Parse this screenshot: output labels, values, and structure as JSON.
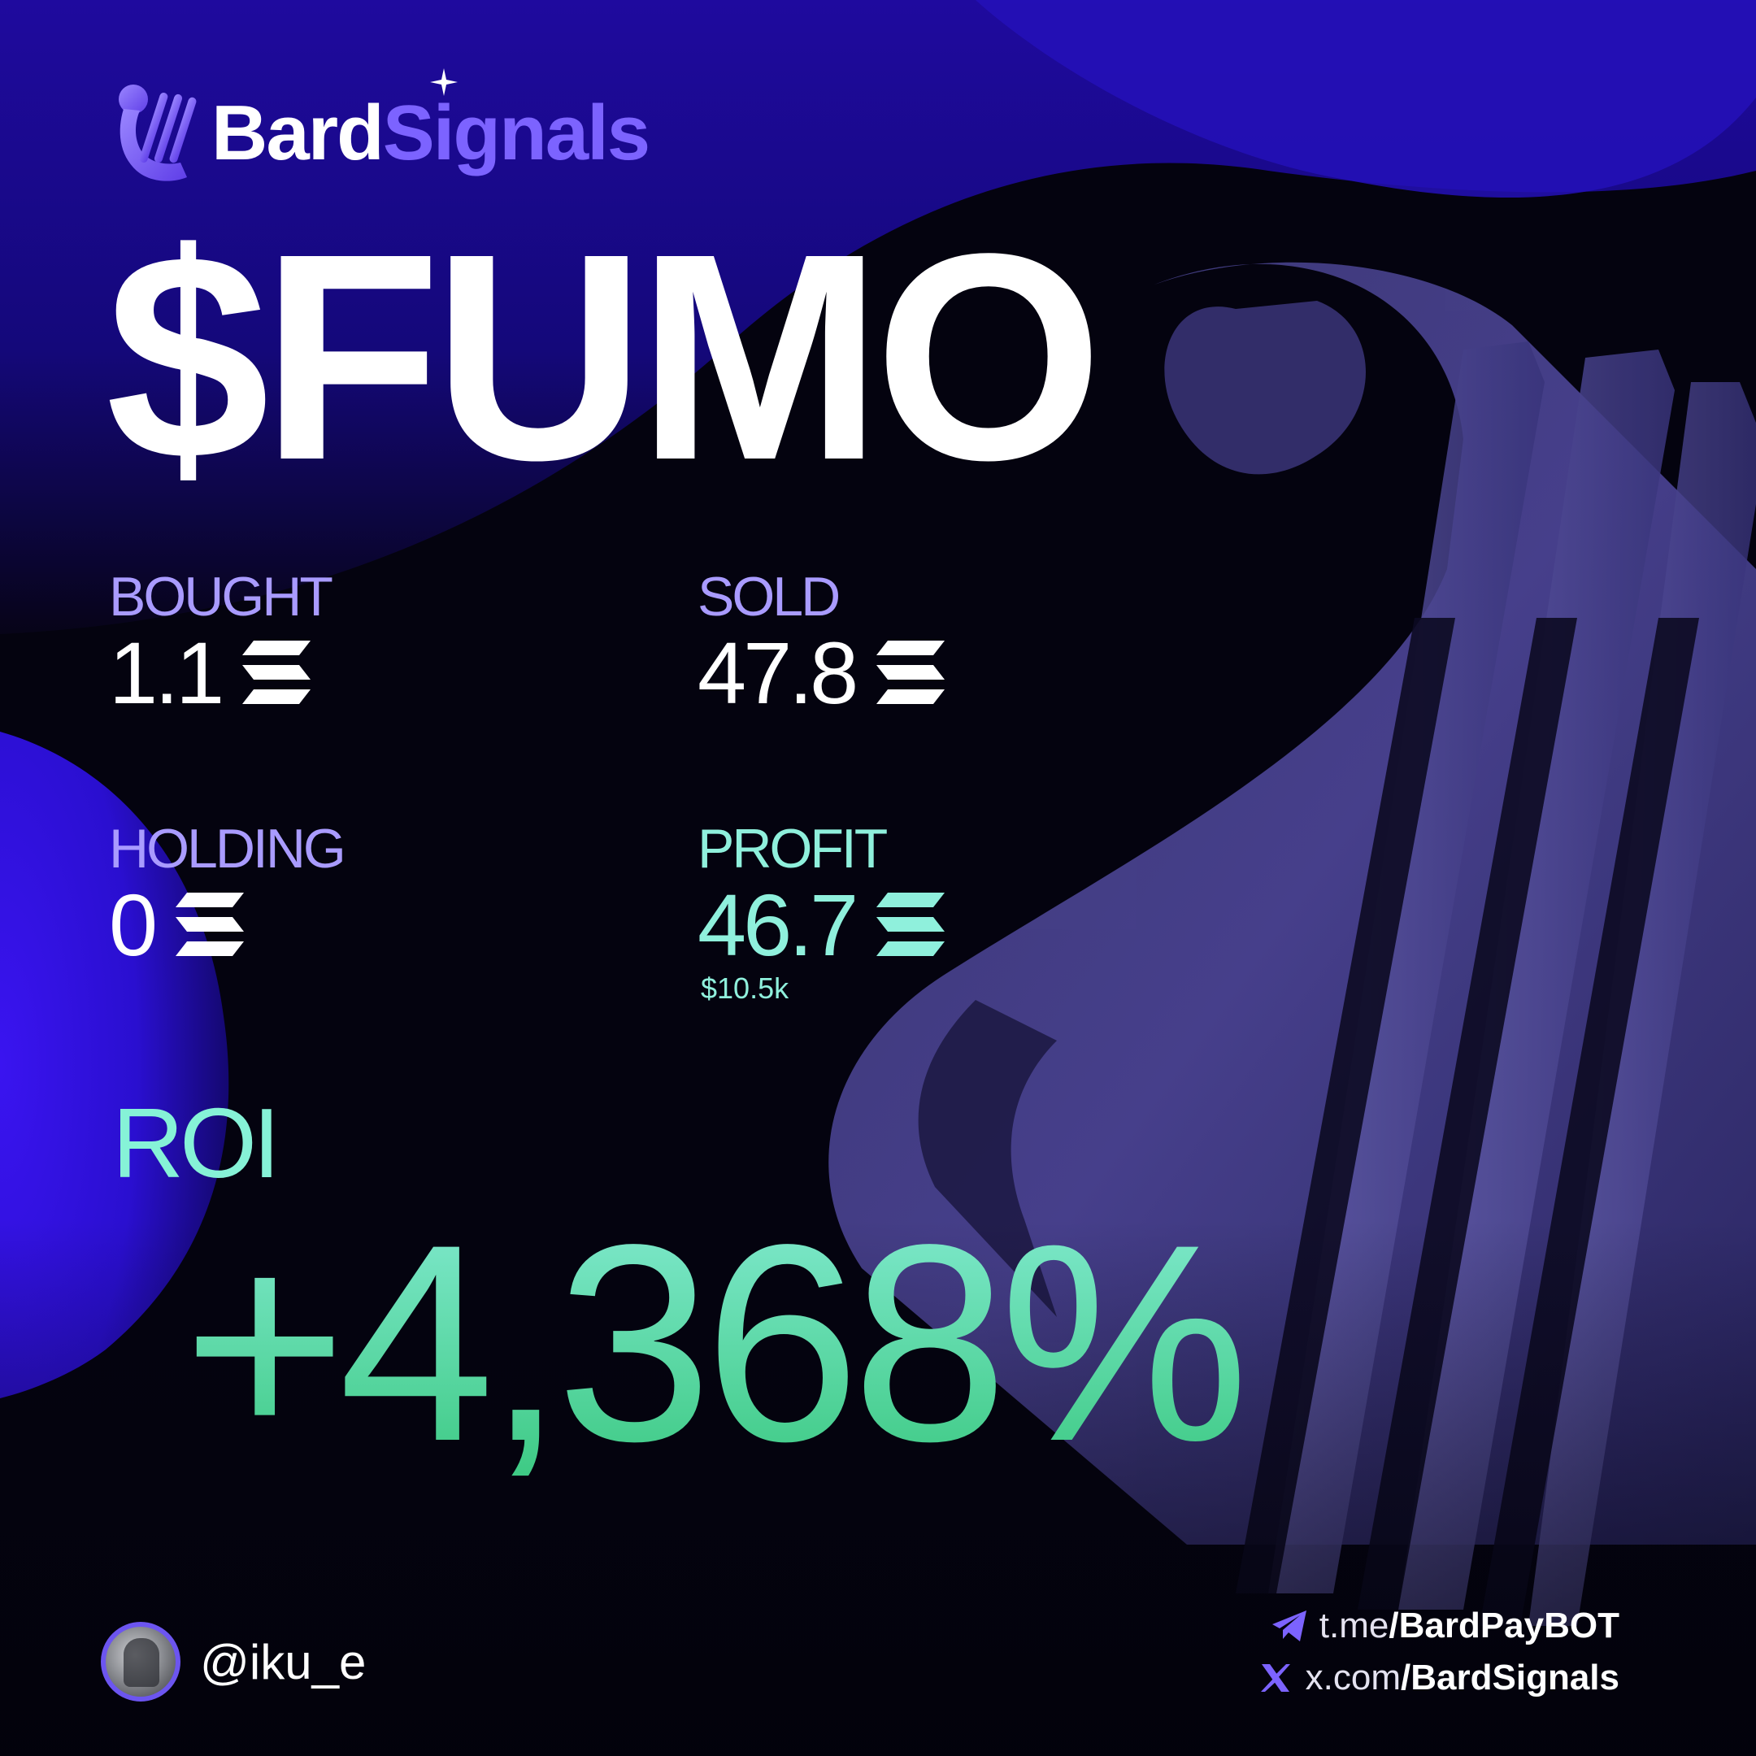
{
  "brand": {
    "name_part1": "Bard",
    "name_part2": "Signals",
    "icon": "lyre-icon",
    "color_accent": "#7c63ff"
  },
  "token": {
    "ticker": "$FUMO"
  },
  "stats": {
    "bought": {
      "label": "BOUGHT",
      "value": "1.1",
      "unit_icon": "solana-icon"
    },
    "sold": {
      "label": "SOLD",
      "value": "47.8",
      "unit_icon": "solana-icon"
    },
    "holding": {
      "label": "HOLDING",
      "value": "0",
      "unit_icon": "solana-icon"
    },
    "profit": {
      "label": "PROFIT",
      "value": "46.7",
      "usd": "$10.5k",
      "unit_icon": "solana-icon",
      "color": "#8ff0dc"
    }
  },
  "roi": {
    "label": "ROI",
    "value": "+4,368%",
    "color": "#4fd898"
  },
  "user": {
    "handle": "@iku_e",
    "avatar_icon": "user-avatar"
  },
  "links": [
    {
      "icon": "telegram-icon",
      "prefix": "t.me",
      "path": "/BardPayBOT"
    },
    {
      "icon": "x-logo-icon",
      "prefix": "x.com",
      "path": "/BardSignals"
    }
  ]
}
